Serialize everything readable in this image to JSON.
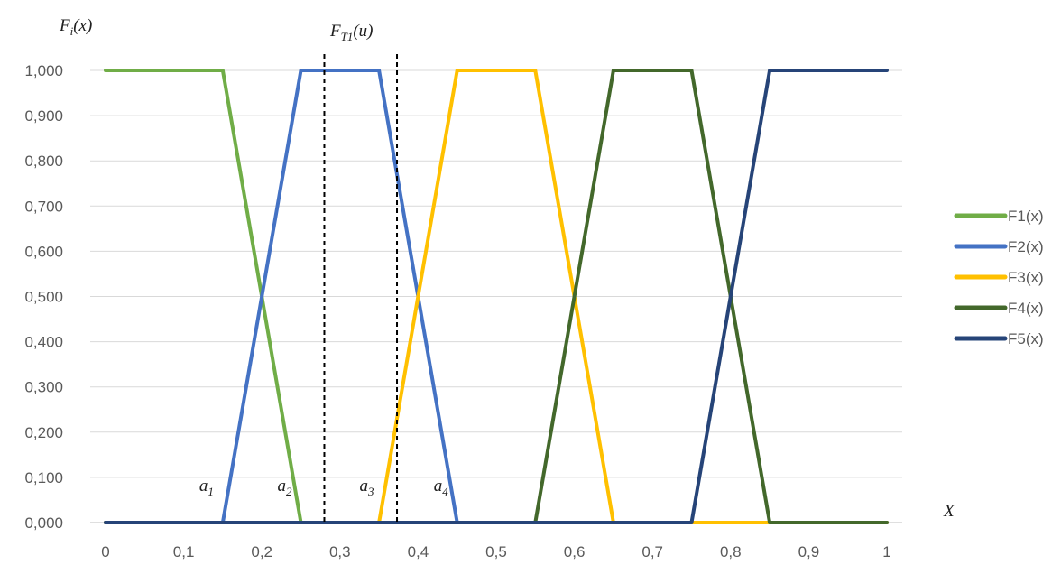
{
  "chart_data": {
    "type": "line",
    "x_ticks": [
      "0",
      "0,1",
      "0,2",
      "0,3",
      "0,4",
      "0,5",
      "0,6",
      "0,7",
      "0,8",
      "0,9",
      "1"
    ],
    "y_ticks": [
      "0,000",
      "0,100",
      "0,200",
      "0,300",
      "0,400",
      "0,500",
      "0,600",
      "0,700",
      "0,800",
      "0,900",
      "1,000"
    ],
    "xlim": [
      0,
      1
    ],
    "ylim": [
      0,
      1
    ],
    "grid": "horizontal",
    "legend_position": "right",
    "ylabel": {
      "main": "F",
      "sub": "i",
      "rest": "(x)"
    },
    "xlabel": "X",
    "series": [
      {
        "name": "F1(x)",
        "color": "#70AD47",
        "points": [
          [
            0,
            1
          ],
          [
            0.15,
            1
          ],
          [
            0.25,
            0
          ],
          [
            0.3,
            0
          ],
          [
            0.35,
            0
          ],
          [
            0.4,
            0
          ],
          [
            0.45,
            0
          ],
          [
            0.5,
            0
          ],
          [
            0.55,
            0
          ],
          [
            0.6,
            0
          ],
          [
            0.65,
            0
          ],
          [
            0.7,
            0
          ],
          [
            0.75,
            0
          ],
          [
            0.8,
            0
          ],
          [
            0.85,
            0
          ],
          [
            0.9,
            0
          ],
          [
            0.95,
            0
          ],
          [
            1,
            0
          ]
        ]
      },
      {
        "name": "F2(x)",
        "color": "#4472C4",
        "points": [
          [
            0,
            0
          ],
          [
            0.1,
            0
          ],
          [
            0.15,
            0
          ],
          [
            0.25,
            1
          ],
          [
            0.35,
            1
          ],
          [
            0.45,
            0
          ],
          [
            0.5,
            0
          ],
          [
            0.55,
            0
          ],
          [
            0.6,
            0
          ],
          [
            0.65,
            0
          ],
          [
            0.7,
            0
          ],
          [
            0.75,
            0
          ],
          [
            0.8,
            0
          ],
          [
            0.85,
            0
          ],
          [
            0.9,
            0
          ],
          [
            0.95,
            0
          ],
          [
            1,
            0
          ]
        ]
      },
      {
        "name": "F3(x)",
        "color": "#FFC000",
        "points": [
          [
            0,
            0
          ],
          [
            0.1,
            0
          ],
          [
            0.2,
            0
          ],
          [
            0.3,
            0
          ],
          [
            0.35,
            0
          ],
          [
            0.45,
            1
          ],
          [
            0.55,
            1
          ],
          [
            0.65,
            0
          ],
          [
            0.7,
            0
          ],
          [
            0.75,
            0
          ],
          [
            0.8,
            0
          ],
          [
            0.85,
            0
          ],
          [
            0.9,
            0
          ],
          [
            0.95,
            0
          ],
          [
            1,
            0
          ]
        ]
      },
      {
        "name": "F4(x)",
        "color": "#43682B",
        "points": [
          [
            0,
            0
          ],
          [
            0.1,
            0
          ],
          [
            0.2,
            0
          ],
          [
            0.3,
            0
          ],
          [
            0.4,
            0
          ],
          [
            0.5,
            0
          ],
          [
            0.55,
            0
          ],
          [
            0.65,
            1
          ],
          [
            0.75,
            1
          ],
          [
            0.85,
            0
          ],
          [
            0.9,
            0
          ],
          [
            0.95,
            0
          ],
          [
            1,
            0
          ]
        ]
      },
      {
        "name": "F5(x)",
        "color": "#264478",
        "points": [
          [
            0,
            0
          ],
          [
            0.1,
            0
          ],
          [
            0.2,
            0
          ],
          [
            0.3,
            0
          ],
          [
            0.4,
            0
          ],
          [
            0.5,
            0
          ],
          [
            0.6,
            0
          ],
          [
            0.7,
            0
          ],
          [
            0.75,
            0
          ],
          [
            0.85,
            1
          ],
          [
            0.9,
            1
          ],
          [
            0.95,
            1
          ],
          [
            1,
            1
          ]
        ]
      }
    ],
    "vlines": [
      {
        "x": 0.28,
        "style": "dashed",
        "color": "#000000"
      },
      {
        "x": 0.373,
        "style": "dashed",
        "color": "#000000"
      }
    ],
    "vline_label": {
      "main": "F",
      "sub": "T1",
      "rest": "(u)"
    },
    "annotations": [
      {
        "main": "a",
        "sub": "1",
        "x": 0.12,
        "y": 0.07
      },
      {
        "main": "a",
        "sub": "2",
        "x": 0.22,
        "y": 0.07
      },
      {
        "main": "a",
        "sub": "3",
        "x": 0.325,
        "y": 0.07
      },
      {
        "main": "a",
        "sub": "4",
        "x": 0.42,
        "y": 0.07
      }
    ]
  }
}
